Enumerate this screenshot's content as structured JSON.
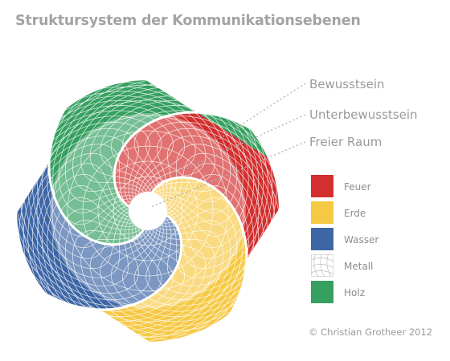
{
  "title": "Struktursystem der Kommunikationsebenen",
  "layers": [
    {
      "id": "bewusstsein",
      "label": "Bewusstsein"
    },
    {
      "id": "unterbewusstsein",
      "label": "Unterbewusstsein"
    },
    {
      "id": "freier-raum",
      "label": "Freier Raum"
    }
  ],
  "legend": [
    {
      "id": "feuer",
      "label": "Feuer",
      "color": "#d32f2f"
    },
    {
      "id": "erde",
      "label": "Erde",
      "color": "#f6c944"
    },
    {
      "id": "wasser",
      "label": "Wasser",
      "color": "#3d66a6"
    },
    {
      "id": "metall",
      "label": "Metall",
      "color": "#ffffff",
      "pattern": "mesh-lines"
    },
    {
      "id": "holz",
      "label": "Holz",
      "color": "#36a060"
    }
  ],
  "credit": "© Christian Grotheer 2012",
  "colors": {
    "title": "#a3a3a3",
    "labels": "#9a9a9a",
    "leader_lines": "#b5b5b5",
    "mesh": "#ffffff"
  }
}
